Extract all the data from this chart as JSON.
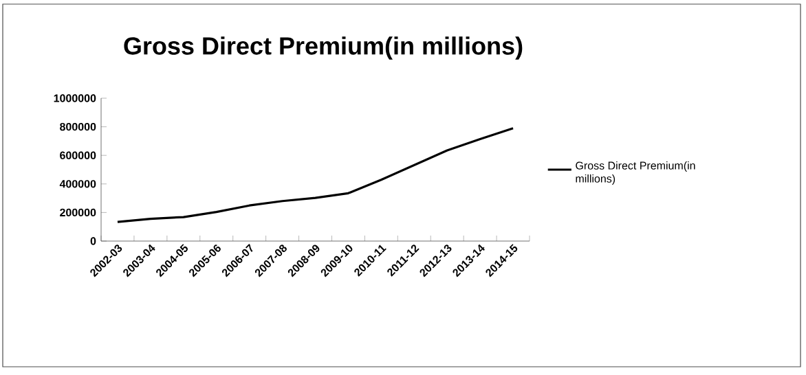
{
  "chart_data": {
    "type": "line",
    "title": "Gross Direct Premium(in millions)",
    "categories": [
      "2002-03",
      "2003-04",
      "2004-05",
      "2005-06",
      "2006-07",
      "2007-08",
      "2008-09",
      "2009-10",
      "2010-11",
      "2011-12",
      "2012-13",
      "2013-14",
      "2014-15"
    ],
    "series": [
      {
        "name": "Gross Direct Premium(in millions)",
        "color": "#000000",
        "values": [
          134000,
          156000,
          168000,
          204000,
          249000,
          280000,
          302000,
          335000,
          429000,
          532000,
          635000,
          714000,
          790000
        ]
      }
    ],
    "ylim": [
      0,
      1000000
    ],
    "yticks": [
      0,
      200000,
      400000,
      600000,
      800000,
      1000000
    ],
    "grid": false,
    "legend": "right",
    "marker": "none",
    "line_style": "solid"
  }
}
